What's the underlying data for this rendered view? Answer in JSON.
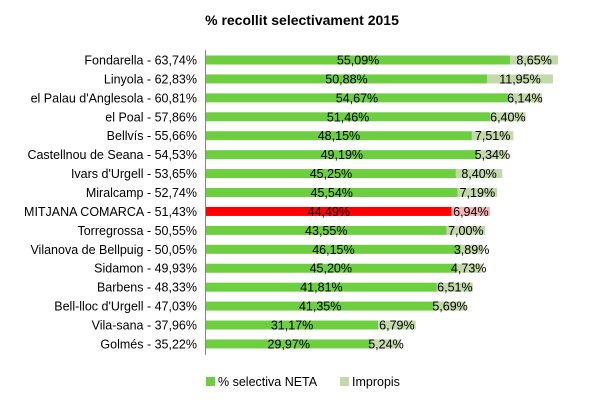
{
  "chart_data": {
    "type": "bar",
    "orientation": "horizontal",
    "stacked": true,
    "title": "% recollit selectivament 2015",
    "xlabel": "",
    "ylabel": "",
    "xlim": [
      0,
      71
    ],
    "grid": false,
    "legend_position": "bottom",
    "categories": [
      "Fondarella - 63,74%",
      "Linyola - 62,83%",
      "el Palau d'Anglesola - 60,81%",
      "el Poal - 57,86%",
      "Bellvís - 55,66%",
      "Castellnou de Seana - 54,53%",
      "Ivars d'Urgell - 53,65%",
      "Miralcamp - 52,74%",
      "MITJANA COMARCA - 51,43%",
      "Torregrossa - 50,55%",
      "Vilanova de Bellpuig - 50,05%",
      "Sidamon - 49,93%",
      "Barbens - 48,33%",
      "Bell-lloc d'Urgell - 47,03%",
      "Vila-sana - 37,96%",
      "Golmés - 35,22%"
    ],
    "highlight_index": 8,
    "series": [
      {
        "name": "% selectiva NETA",
        "color": "#6dcf3f",
        "highlight_color": "#ff0000",
        "values": [
          55.09,
          50.88,
          54.67,
          51.46,
          48.15,
          49.19,
          45.25,
          45.54,
          44.49,
          43.55,
          46.15,
          45.2,
          41.81,
          41.35,
          31.17,
          29.97
        ],
        "labels": [
          "55,09%",
          "50,88%",
          "54,67%",
          "51,46%",
          "48,15%",
          "49,19%",
          "45,25%",
          "45,54%",
          "44,49%",
          "43,55%",
          "46,15%",
          "45,20%",
          "41,81%",
          "41,35%",
          "31,17%",
          "29,97%"
        ]
      },
      {
        "name": "Impropis",
        "color": "#c3d9a9",
        "highlight_color": "#f5b5b5",
        "values": [
          8.65,
          11.95,
          6.14,
          6.4,
          7.51,
          5.34,
          8.4,
          7.19,
          6.94,
          7.0,
          3.89,
          4.73,
          6.51,
          5.69,
          6.79,
          5.24
        ],
        "labels": [
          "8,65%",
          "11,95%",
          "6,14%",
          "6,40%",
          "7,51%",
          "5,34%",
          "8,40%",
          "7,19%",
          "6,94%",
          "7,00%",
          "3,89%",
          "4,73%",
          "6,51%",
          "5,69%",
          "6,79%",
          "5,24%"
        ]
      }
    ]
  }
}
